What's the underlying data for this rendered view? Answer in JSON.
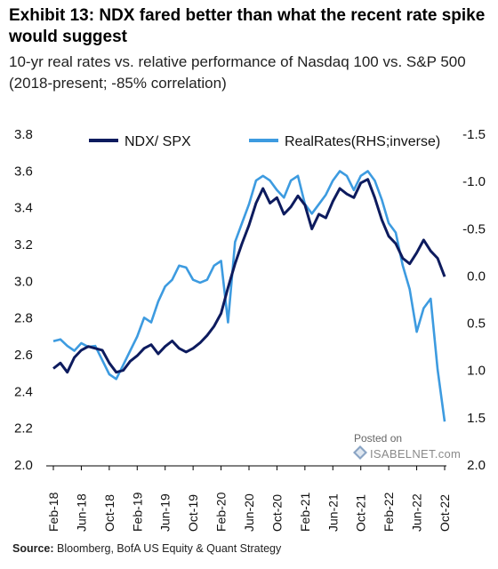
{
  "header": {
    "title": "Exhibit 13: NDX fared better than what the recent rate spike would suggest",
    "subtitle": "10-yr real rates vs. relative performance of Nasdaq 100 vs. S&P 500 (2018-present; -85% correlation)"
  },
  "footer": {
    "source_label": "Source:",
    "source_text": " Bloomberg, BofA US Equity & Quant Strategy"
  },
  "watermark": {
    "posted": "Posted on",
    "name": "ISABELNET.com"
  },
  "chart_data": {
    "type": "line",
    "categories": [
      "Feb-18",
      "Jun-18",
      "Oct-18",
      "Feb-19",
      "Jun-19",
      "Oct-19",
      "Feb-20",
      "Jun-20",
      "Oct-20",
      "Feb-21",
      "Jun-21",
      "Oct-21",
      "Feb-22",
      "Jun-22",
      "Oct-22"
    ],
    "ylim_left": [
      2.0,
      3.8
    ],
    "yticks_left": [
      "3.8",
      "3.6",
      "3.4",
      "3.2",
      "3.0",
      "2.8",
      "2.6",
      "2.4",
      "2.2",
      "2.0"
    ],
    "ylim_right_inverse": [
      -1.5,
      2.0
    ],
    "yticks_right": [
      "-1.5",
      "-1.0",
      "-0.5",
      "0.0",
      "0.5",
      "1.0",
      "1.5",
      "2.0"
    ],
    "legend_placement": "top",
    "colors": {
      "ndx": "#0d1b5e",
      "rates": "#3d9be0"
    },
    "series": [
      {
        "name": "NDX/ SPX",
        "axis": "left",
        "x": [
          "2018-02",
          "2018-03",
          "2018-04",
          "2018-05",
          "2018-06",
          "2018-07",
          "2018-08",
          "2018-09",
          "2018-10",
          "2018-11",
          "2018-12",
          "2019-01",
          "2019-02",
          "2019-03",
          "2019-04",
          "2019-05",
          "2019-06",
          "2019-07",
          "2019-08",
          "2019-09",
          "2019-10",
          "2019-11",
          "2019-12",
          "2020-01",
          "2020-02",
          "2020-03",
          "2020-04",
          "2020-05",
          "2020-06",
          "2020-07",
          "2020-08",
          "2020-09",
          "2020-10",
          "2020-11",
          "2020-12",
          "2021-01",
          "2021-02",
          "2021-03",
          "2021-04",
          "2021-05",
          "2021-06",
          "2021-07",
          "2021-08",
          "2021-09",
          "2021-10",
          "2021-11",
          "2021-12",
          "2022-01",
          "2022-02",
          "2022-03",
          "2022-04",
          "2022-05",
          "2022-06",
          "2022-07",
          "2022-08",
          "2022-09",
          "2022-10"
        ],
        "values": [
          2.52,
          2.55,
          2.5,
          2.58,
          2.62,
          2.64,
          2.63,
          2.62,
          2.55,
          2.5,
          2.51,
          2.56,
          2.59,
          2.63,
          2.65,
          2.6,
          2.64,
          2.67,
          2.63,
          2.61,
          2.63,
          2.66,
          2.7,
          2.75,
          2.82,
          2.96,
          3.09,
          3.2,
          3.3,
          3.42,
          3.5,
          3.42,
          3.45,
          3.36,
          3.4,
          3.46,
          3.41,
          3.28,
          3.36,
          3.34,
          3.43,
          3.5,
          3.47,
          3.45,
          3.53,
          3.55,
          3.45,
          3.33,
          3.24,
          3.2,
          3.12,
          3.09,
          3.15,
          3.22,
          3.16,
          3.12,
          3.02
        ]
      },
      {
        "name": "RealRates(RHS;inverse)",
        "axis": "right",
        "x": [
          "2018-02",
          "2018-03",
          "2018-04",
          "2018-05",
          "2018-06",
          "2018-07",
          "2018-08",
          "2018-09",
          "2018-10",
          "2018-11",
          "2018-12",
          "2019-01",
          "2019-02",
          "2019-03",
          "2019-04",
          "2019-05",
          "2019-06",
          "2019-07",
          "2019-08",
          "2019-09",
          "2019-10",
          "2019-11",
          "2019-12",
          "2020-01",
          "2020-02",
          "2020-03",
          "2020-04",
          "2020-05",
          "2020-06",
          "2020-07",
          "2020-08",
          "2020-09",
          "2020-10",
          "2020-11",
          "2020-12",
          "2021-01",
          "2021-02",
          "2021-03",
          "2021-04",
          "2021-05",
          "2021-06",
          "2021-07",
          "2021-08",
          "2021-09",
          "2021-10",
          "2021-11",
          "2021-12",
          "2022-01",
          "2022-02",
          "2022-03",
          "2022-04",
          "2022-05",
          "2022-06",
          "2022-07",
          "2022-08",
          "2022-09",
          "2022-10"
        ],
        "values": [
          0.7,
          0.68,
          0.75,
          0.8,
          0.72,
          0.76,
          0.75,
          0.9,
          1.05,
          1.1,
          0.95,
          0.8,
          0.65,
          0.45,
          0.5,
          0.28,
          0.12,
          0.05,
          -0.1,
          -0.08,
          0.05,
          0.08,
          0.05,
          -0.1,
          -0.15,
          0.5,
          -0.35,
          -0.55,
          -0.75,
          -1.0,
          -1.05,
          -1.0,
          -0.9,
          -0.82,
          -1.0,
          -1.05,
          -0.75,
          -0.65,
          -0.75,
          -0.85,
          -1.0,
          -1.1,
          -1.05,
          -0.9,
          -1.05,
          -1.1,
          -1.0,
          -0.8,
          -0.55,
          -0.45,
          -0.1,
          0.15,
          0.6,
          0.35,
          0.25,
          1.0,
          1.55
        ]
      }
    ]
  }
}
